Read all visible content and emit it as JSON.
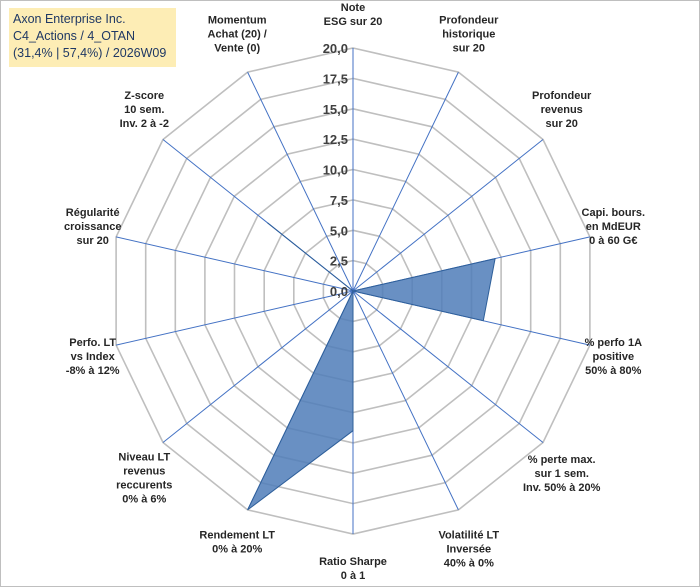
{
  "header": {
    "lines": [
      "Axon Enterprise Inc.",
      "C4_Actions / 4_OTAN",
      "(31,4% | 57,4%) / 2026W09"
    ]
  },
  "colors": {
    "grid": "#bfbfbf",
    "spoke": "#4472c4",
    "fill": "#4f7db8",
    "stroke": "#2e5f9a",
    "header_bg": "#fdedb5",
    "header_text": "#1f3864"
  },
  "chart_data": {
    "type": "radar",
    "title": "",
    "rmin": 0,
    "rmax": 20,
    "ticks": [
      "0,0",
      "2,5",
      "5,0",
      "7,5",
      "10,0",
      "12,5",
      "15,0",
      "17,5",
      "20,0"
    ],
    "tick_values": [
      0,
      2.5,
      5,
      7.5,
      10,
      12.5,
      15,
      17.5,
      20
    ],
    "categories": [
      [
        "Note",
        "ESG sur 20"
      ],
      [
        "Profondeur",
        "historique",
        "sur 20"
      ],
      [
        "Profondeur",
        "revenus",
        "sur 20"
      ],
      [
        "Capi. bours.",
        "en MdEUR",
        "0 à 60 G€"
      ],
      [
        "% perfo 1A",
        "positive",
        "50% à 80%"
      ],
      [
        "% perte max.",
        "sur 1 sem.",
        "Inv. 50% à 20%"
      ],
      [
        "Volatilité LT",
        "Inversée",
        "40% à 0%"
      ],
      [
        "Ratio Sharpe",
        "0 à 1"
      ],
      [
        "Rendement LT",
        "0% à 20%"
      ],
      [
        "Niveau LT",
        "revenus",
        "reccurents",
        "0% à 6%"
      ],
      [
        "Perfo. LT",
        "vs Index",
        "-8% à 12%"
      ],
      [
        "Régularité",
        "croissance",
        "sur 20"
      ],
      [
        "Z-score",
        "10 sem.",
        "Inv. 2 à -2"
      ],
      [
        "Momentum",
        "Achat (20) /",
        "Vente (0)"
      ]
    ],
    "series": [
      {
        "values": [
          0,
          0,
          0,
          12,
          11,
          0,
          0,
          11.5,
          20,
          0,
          0,
          0,
          9,
          0
        ]
      }
    ]
  }
}
